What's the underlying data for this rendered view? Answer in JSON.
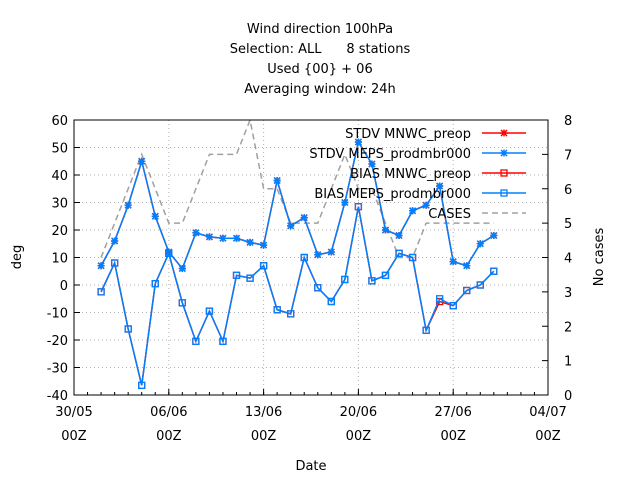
{
  "chart_data": {
    "type": "line",
    "title_lines": [
      "Wind direction 100hPa",
      "Selection: ALL      8 stations",
      "Used {00} + 06",
      "Averaging window: 24h"
    ],
    "xlabel": "Date",
    "ylabel": "deg",
    "y2label": "No cases",
    "xlim": [
      "2024-05-30",
      "2024-07-04"
    ],
    "ylim": [
      -40,
      60
    ],
    "y2lim": [
      0,
      8
    ],
    "x_ticks": [
      {
        "date": "2024-05-30",
        "line1": "30/05",
        "line2": "00Z"
      },
      {
        "date": "2024-06-06",
        "line1": "06/06",
        "line2": "00Z"
      },
      {
        "date": "2024-06-13",
        "line1": "13/06",
        "line2": "00Z"
      },
      {
        "date": "2024-06-20",
        "line1": "20/06",
        "line2": "00Z"
      },
      {
        "date": "2024-06-27",
        "line1": "27/06",
        "line2": "00Z"
      },
      {
        "date": "2024-07-04",
        "line1": "04/07",
        "line2": "00Z"
      }
    ],
    "y_ticks": [
      -40,
      -30,
      -20,
      -10,
      0,
      10,
      20,
      30,
      40,
      50,
      60
    ],
    "y2_ticks": [
      0,
      1,
      2,
      3,
      4,
      5,
      6,
      7,
      8
    ],
    "grid": true,
    "legend_position": "top-right",
    "x": [
      "2024-06-01",
      "2024-06-02",
      "2024-06-03",
      "2024-06-04",
      "2024-06-05",
      "2024-06-06",
      "2024-06-07",
      "2024-06-08",
      "2024-06-09",
      "2024-06-10",
      "2024-06-11",
      "2024-06-12",
      "2024-06-13",
      "2024-06-14",
      "2024-06-15",
      "2024-06-16",
      "2024-06-17",
      "2024-06-18",
      "2024-06-19",
      "2024-06-20",
      "2024-06-21",
      "2024-06-22",
      "2024-06-23",
      "2024-06-24",
      "2024-06-25",
      "2024-06-26",
      "2024-06-27",
      "2024-06-28",
      "2024-06-29",
      "2024-06-30"
    ],
    "series": [
      {
        "name": "STDV MNWC_preop",
        "axis": "y1",
        "color": "#ff0000",
        "marker": "star",
        "dash": "",
        "values": [
          7,
          16,
          29,
          45,
          25,
          12,
          6,
          19,
          17.5,
          17,
          17,
          15.5,
          14.5,
          38,
          21.5,
          24.5,
          11,
          12,
          30,
          52,
          44,
          20,
          18,
          27,
          29,
          36,
          8.5,
          7,
          15,
          18
        ]
      },
      {
        "name": "STDV MEPS_prodmbr000",
        "axis": "y1",
        "color": "#0080ff",
        "marker": "star",
        "dash": "",
        "values": [
          7,
          16,
          29,
          45,
          25,
          12,
          6,
          19,
          17.5,
          17,
          17,
          15.5,
          14.5,
          38,
          21.5,
          24.5,
          11,
          12,
          30,
          52,
          44,
          20,
          18,
          27,
          29,
          36,
          8.5,
          7,
          15,
          18
        ]
      },
      {
        "name": "BIAS MNWC_preop",
        "axis": "y1",
        "color": "#ff0000",
        "marker": "square",
        "dash": "",
        "values": [
          -2.5,
          8,
          -16,
          -36.5,
          0.5,
          11.5,
          -6.5,
          -20.5,
          -9.5,
          -20.5,
          3.5,
          2.5,
          7,
          -9,
          -10.5,
          10,
          -1,
          -6,
          2,
          28.5,
          1.5,
          3.5,
          11.5,
          10,
          -16.5,
          -6,
          -7.5,
          -2,
          0,
          5
        ]
      },
      {
        "name": "BIAS MEPS_prodmbr000",
        "axis": "y1",
        "color": "#0080ff",
        "marker": "square",
        "dash": "",
        "values": [
          -2.5,
          8,
          -16,
          -36.5,
          0.5,
          11.5,
          -6.5,
          -20.5,
          -9.5,
          -20.5,
          3.5,
          2.5,
          7,
          -9,
          -10.5,
          10,
          -1,
          -6,
          2,
          28.5,
          1.5,
          3.5,
          11.5,
          10,
          -16.5,
          -5,
          -7.5,
          -2,
          0,
          5
        ]
      },
      {
        "name": "CASES",
        "axis": "y2",
        "color": "#a0a0a0",
        "marker": "none",
        "dash": "6,4",
        "values": [
          4,
          5,
          6,
          7,
          6,
          5,
          5,
          6,
          7,
          7,
          7,
          8,
          6,
          6,
          5,
          5,
          5,
          6,
          7,
          6,
          6,
          5,
          4,
          4,
          5,
          5,
          5,
          5,
          5,
          5
        ]
      }
    ]
  }
}
